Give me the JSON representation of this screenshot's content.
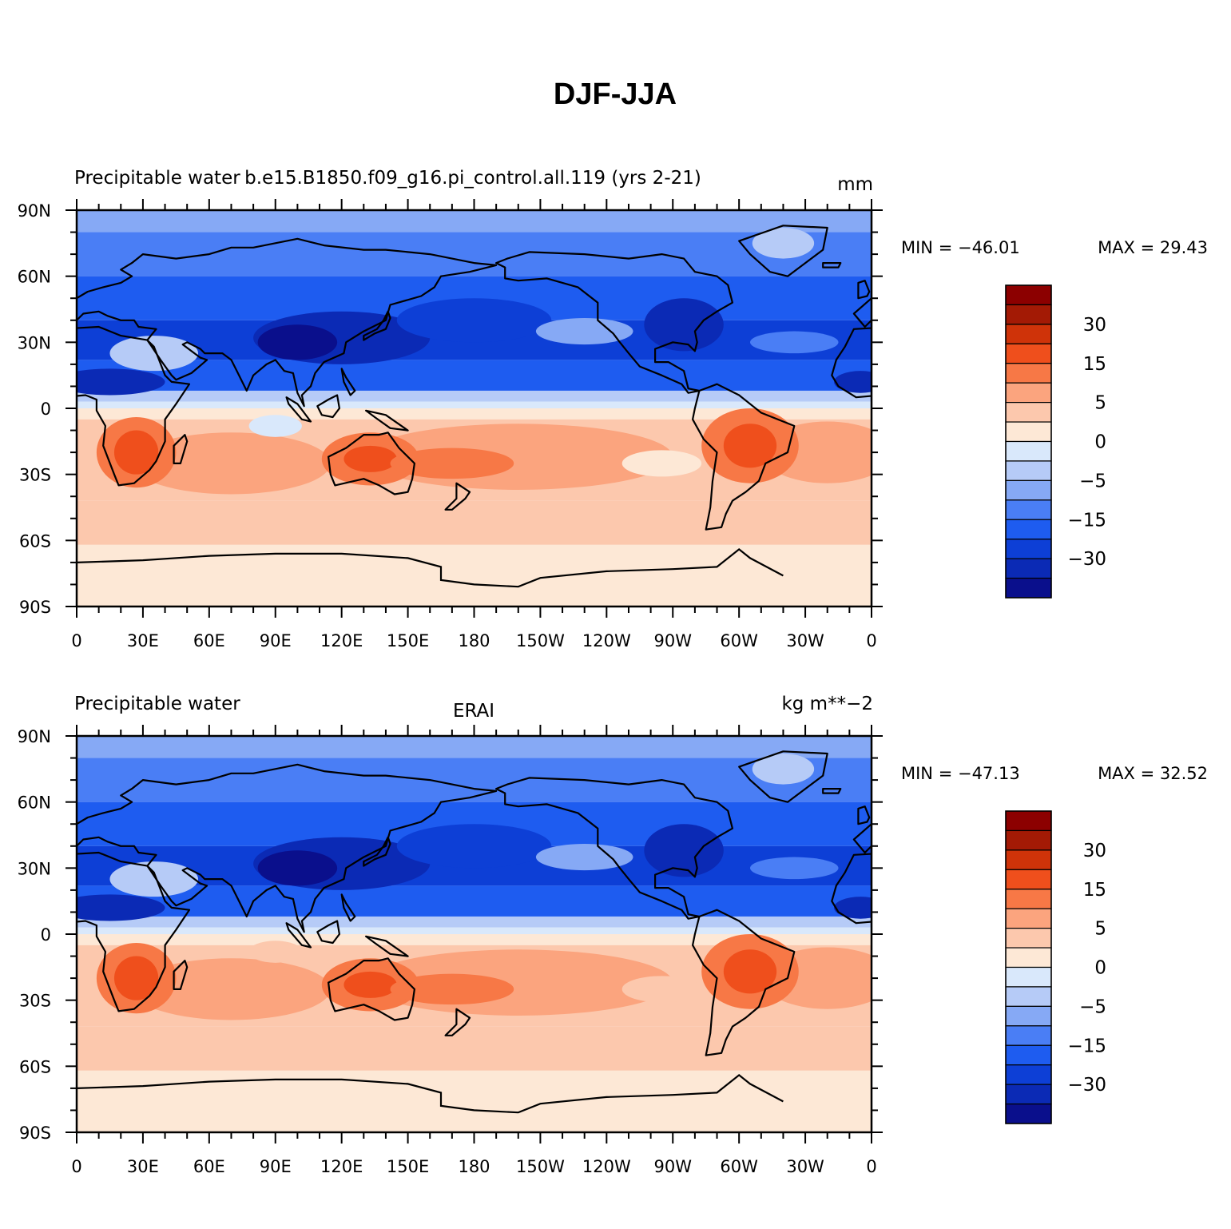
{
  "figure": {
    "title": "DJF-JJA"
  },
  "colors": {
    "levels": [
      "#0a0f8c",
      "#0b2ab5",
      "#0d3fd6",
      "#1e5cf0",
      "#4a7ef5",
      "#86a9f5",
      "#b6cbf7",
      "#d9e8fb",
      "#fde8d6",
      "#fcc8ad",
      "#fba47e",
      "#f77846",
      "#ef4f1c",
      "#cf3309",
      "#a31a05",
      "#8c0000"
    ],
    "coast": "#000000"
  },
  "chart_data": [
    {
      "type": "map-contour",
      "left_label": "Precipitable water",
      "center_label": "b.e15.B1850.f09_g16.pi_control.all.119 (yrs 2-21)",
      "right_label": "mm",
      "min_text": "MIN = −46.01",
      "max_text": "MAX =   29.43",
      "x_ticks": [
        "0",
        "30E",
        "60E",
        "90E",
        "120E",
        "150E",
        "180",
        "150W",
        "120W",
        "90W",
        "60W",
        "30W",
        "0"
      ],
      "y_ticks": [
        "90N",
        "60N",
        "30N",
        "0",
        "30S",
        "60S",
        "90S"
      ],
      "colorbar_labels": [
        "30",
        "15",
        "5",
        "0",
        "−5",
        "−15",
        "−30"
      ]
    },
    {
      "type": "map-contour",
      "left_label": "Precipitable water",
      "center_label": "ERAI",
      "right_label": "kg m**−2",
      "min_text": "MIN = −47.13",
      "max_text": "MAX =   32.52",
      "x_ticks": [
        "0",
        "30E",
        "60E",
        "90E",
        "120E",
        "150E",
        "180",
        "150W",
        "120W",
        "90W",
        "60W",
        "30W",
        "0"
      ],
      "y_ticks": [
        "90N",
        "60N",
        "30N",
        "0",
        "30S",
        "60S",
        "90S"
      ],
      "colorbar_labels": [
        "30",
        "15",
        "5",
        "0",
        "−5",
        "−15",
        "−30"
      ]
    }
  ]
}
